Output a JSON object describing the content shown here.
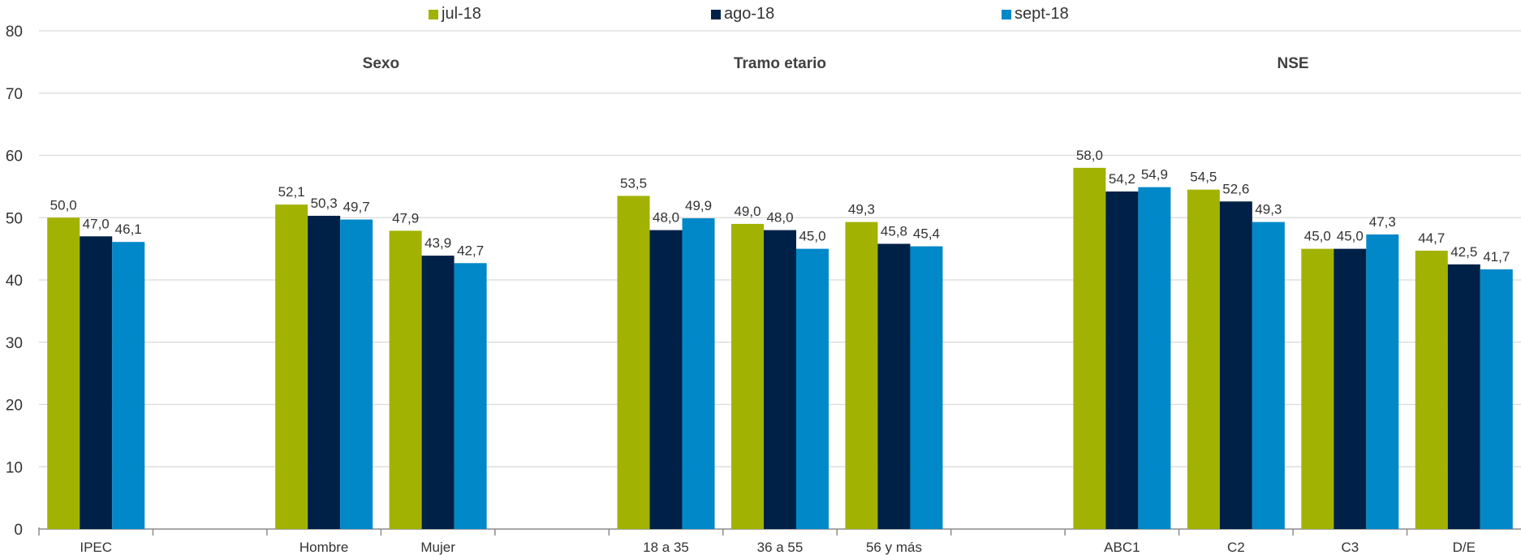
{
  "chart_data": {
    "type": "bar",
    "legend_position": "top",
    "grid": true,
    "ylim": [
      0,
      80
    ],
    "yticks": [
      "0",
      "10",
      "20",
      "30",
      "40",
      "50",
      "60",
      "70",
      "80"
    ],
    "group_titles": [
      "Sexo",
      "Tramo etario",
      "NSE"
    ],
    "categories": [
      "IPEC",
      "",
      "Hombre",
      "Mujer",
      "",
      "18 a 35",
      "36 a 55",
      "56 y más",
      "",
      "ABC1",
      "C2",
      "C3",
      "D/E"
    ],
    "series": [
      {
        "name": "jul-18",
        "color": "#a2b203",
        "values": [
          50.0,
          null,
          52.1,
          47.9,
          null,
          53.5,
          49.0,
          49.3,
          null,
          58.0,
          54.5,
          45.0,
          44.7
        ],
        "labels": [
          "50,0",
          "",
          "52,1",
          "47,9",
          "",
          "53,5",
          "49,0",
          "49,3",
          "",
          "58,0",
          "54,5",
          "45,0",
          "44,7"
        ]
      },
      {
        "name": "ago-18",
        "color": "#002147",
        "values": [
          47.0,
          null,
          50.3,
          43.9,
          null,
          48.0,
          48.0,
          45.8,
          null,
          54.2,
          52.6,
          45.0,
          42.5
        ],
        "labels": [
          "47,0",
          "",
          "50,3",
          "43,9",
          "",
          "48,0",
          "48,0",
          "45,8",
          "",
          "54,2",
          "52,6",
          "45,0",
          "42,5"
        ]
      },
      {
        "name": "sept-18",
        "color": "#0088c9",
        "values": [
          46.1,
          null,
          49.7,
          42.7,
          null,
          49.9,
          45.0,
          45.4,
          null,
          54.9,
          49.3,
          47.3,
          41.7
        ],
        "labels": [
          "46,1",
          "",
          "49,7",
          "42,7",
          "",
          "49,9",
          "45,0",
          "45,4",
          "",
          "54,9",
          "49,3",
          "47,3",
          "41,7"
        ]
      }
    ]
  }
}
